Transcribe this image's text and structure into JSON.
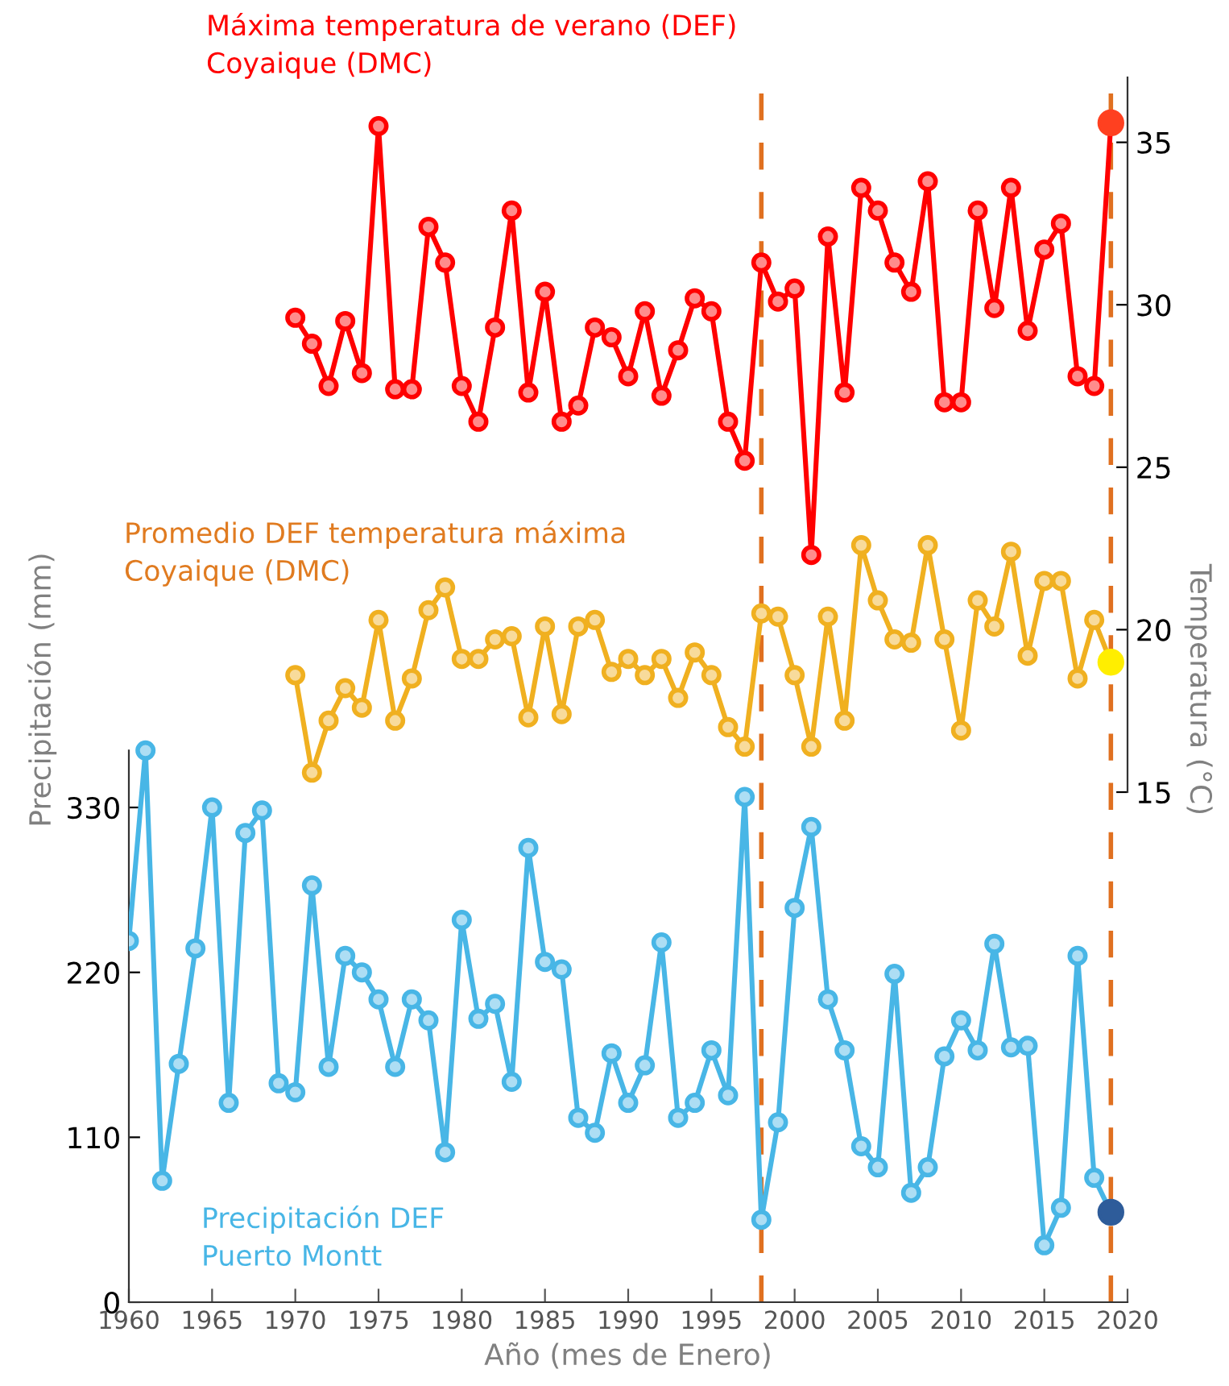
{
  "chart_data": {
    "type": "line",
    "xlabel": "Año (mes de Enero)",
    "ylabel": "Precipitación (mm)",
    "y2label": "Temperatura (°C)",
    "xlim": [
      1960,
      2020
    ],
    "xticks": [
      1960,
      1965,
      1970,
      1975,
      1980,
      1985,
      1990,
      1995,
      2000,
      2005,
      2010,
      2015,
      2020
    ],
    "ylim": [
      0,
      817
    ],
    "yticks": [
      0,
      110,
      220,
      330
    ],
    "y2lim": [
      -0.7,
      37
    ],
    "y2ticks": [
      15,
      20,
      25,
      30,
      35
    ],
    "grid": false,
    "marker": "circle",
    "line_style": "solid",
    "ref_lines": [
      {
        "axis": "x",
        "value": 1998,
        "color": "#e07020",
        "line_style": "dashed"
      },
      {
        "axis": "x",
        "value": 2019,
        "color": "#e07020",
        "line_style": "dashed"
      }
    ],
    "series": [
      {
        "name": "Máxima temperatura de verano (DEF)\nCoyaique (DMC)",
        "color": "#ff0000",
        "axis": "y2",
        "x": [
          1970,
          1971,
          1972,
          1973,
          1974,
          1975,
          1976,
          1977,
          1978,
          1979,
          1980,
          1981,
          1982,
          1983,
          1984,
          1985,
          1986,
          1987,
          1988,
          1989,
          1990,
          1991,
          1992,
          1993,
          1994,
          1995,
          1996,
          1997,
          1998,
          1999,
          2000,
          2001,
          2002,
          2003,
          2004,
          2005,
          2006,
          2007,
          2008,
          2009,
          2010,
          2011,
          2012,
          2013,
          2014,
          2015,
          2016,
          2017,
          2018,
          2019
        ],
        "values": [
          29.6,
          28.8,
          27.5,
          29.5,
          27.9,
          35.5,
          27.4,
          27.4,
          32.4,
          31.3,
          27.5,
          26.4,
          29.3,
          32.9,
          27.3,
          30.4,
          26.4,
          26.9,
          29.3,
          29.0,
          27.8,
          29.8,
          27.2,
          28.6,
          30.2,
          29.8,
          26.4,
          25.2,
          31.3,
          30.1,
          30.5,
          22.3,
          32.1,
          27.3,
          33.6,
          32.9,
          31.3,
          30.4,
          33.8,
          27.0,
          27.0,
          32.9,
          29.9,
          33.6,
          29.2,
          31.7,
          32.5,
          27.8,
          27.5,
          35.6
        ]
      },
      {
        "name": "Promedio DEF temperatura máxima\nCoyaique (DMC)",
        "color": "#f0b020",
        "axis": "y2",
        "x": [
          1970,
          1971,
          1972,
          1973,
          1974,
          1975,
          1976,
          1977,
          1978,
          1979,
          1980,
          1981,
          1982,
          1983,
          1984,
          1985,
          1986,
          1987,
          1988,
          1989,
          1990,
          1991,
          1992,
          1993,
          1994,
          1995,
          1996,
          1997,
          1998,
          1999,
          2000,
          2001,
          2002,
          2003,
          2004,
          2005,
          2006,
          2007,
          2008,
          2009,
          2010,
          2011,
          2012,
          2013,
          2014,
          2015,
          2016,
          2017,
          2018,
          2019
        ],
        "values": [
          18.6,
          15.6,
          17.2,
          18.2,
          17.6,
          20.3,
          17.2,
          18.5,
          20.6,
          21.3,
          19.1,
          19.1,
          19.7,
          19.8,
          17.3,
          20.1,
          17.4,
          20.1,
          20.3,
          18.7,
          19.1,
          18.6,
          19.1,
          17.9,
          19.3,
          18.6,
          17.0,
          16.4,
          20.5,
          20.4,
          18.6,
          16.4,
          20.4,
          17.2,
          22.6,
          20.9,
          19.7,
          19.6,
          22.6,
          19.7,
          16.9,
          20.9,
          20.1,
          22.4,
          19.2,
          21.5,
          21.5,
          18.5,
          20.3,
          19.0
        ]
      },
      {
        "name": "Precipitación DEF\nPuerto Montt",
        "color": "#48b6e6",
        "x": [
          1960,
          1961,
          1962,
          1963,
          1964,
          1965,
          1966,
          1967,
          1968,
          1969,
          1970,
          1971,
          1972,
          1973,
          1974,
          1975,
          1976,
          1977,
          1978,
          1979,
          1980,
          1981,
          1982,
          1983,
          1984,
          1985,
          1986,
          1987,
          1988,
          1989,
          1990,
          1991,
          1992,
          1993,
          1994,
          1995,
          1996,
          1997,
          1998,
          1999,
          2000,
          2001,
          2002,
          2003,
          2004,
          2005,
          2006,
          2007,
          2008,
          2009,
          2010,
          2011,
          2012,
          2013,
          2014,
          2015,
          2016,
          2017,
          2018,
          2019
        ],
        "values": [
          241,
          368,
          81,
          159,
          236,
          330,
          133,
          313,
          328,
          146,
          140,
          278,
          157,
          231,
          220,
          202,
          157,
          202,
          188,
          100,
          255,
          189,
          199,
          147,
          303,
          227,
          222,
          123,
          113,
          166,
          133,
          158,
          240,
          123,
          133,
          168,
          138,
          337,
          55,
          120,
          263,
          317,
          202,
          168,
          104,
          90,
          219,
          73,
          90,
          164,
          188,
          168,
          239,
          170,
          171,
          38,
          63,
          231,
          83,
          60
        ]
      },
      {
        "type": "scatter",
        "color": "#ff4020",
        "axis": "y2",
        "x": [
          2019
        ],
        "values": [
          35.6
        ]
      },
      {
        "type": "scatter",
        "color": "#ffee00",
        "axis": "y2",
        "x": [
          2019
        ],
        "values": [
          19.0
        ]
      },
      {
        "type": "scatter",
        "color": "#2e5c9a",
        "x": [
          2019
        ],
        "values": [
          60
        ]
      }
    ]
  }
}
